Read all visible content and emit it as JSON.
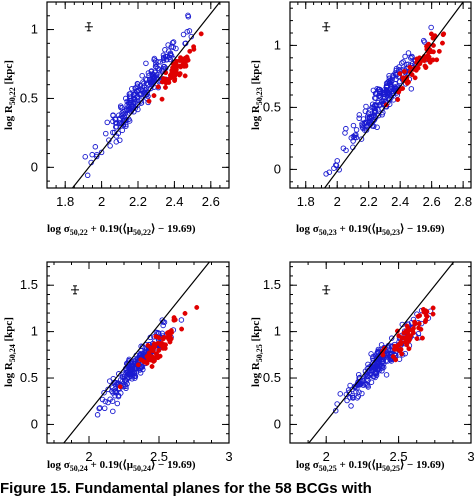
{
  "chart_data": [
    {
      "type": "scatter",
      "xlabel_parts": {
        "pre": "log σ",
        "sub1": "50,22",
        "mid": " + 0.19(⟨μ",
        "sub2": "50,22",
        "post": "⟩ − 19.69)"
      },
      "ylabel_parts": {
        "pre": "log R",
        "sub": "50,22",
        "post": " [kpc]"
      },
      "xlim": [
        1.7,
        2.7
      ],
      "ylim": [
        -0.15,
        1.2
      ],
      "xticks": [
        "1.8",
        "2",
        "2.2",
        "2.4",
        "2.6"
      ],
      "xtick_values": [
        1.8,
        2.0,
        2.2,
        2.4,
        2.6
      ],
      "yticks": [
        "0",
        "0.5",
        "1"
      ],
      "ytick_values": [
        0,
        0.5,
        1.0
      ],
      "fit_line": [
        [
          1.84,
          -0.15
        ],
        [
          2.65,
          1.2
        ]
      ],
      "error_bar": {
        "x": 1.93,
        "y": 1.02
      },
      "series": [
        {
          "color": "#1a1ad0",
          "marker": "open-circle",
          "center": [
            2.22,
            0.55
          ],
          "spread": [
            0.11,
            0.11
          ],
          "slope": 1.7,
          "count": 230,
          "seed": 11
        },
        {
          "color": "#e00000",
          "marker": "filled-circle",
          "center": [
            2.42,
            0.72
          ],
          "spread": [
            0.06,
            0.07
          ],
          "slope": 1.6,
          "count": 60,
          "seed": 12
        }
      ]
    },
    {
      "type": "scatter",
      "xlabel_parts": {
        "pre": "log σ",
        "sub1": "50,23",
        "mid": " + 0.19(⟨μ",
        "sub2": "50,23",
        "post": "⟩ − 19.69)"
      },
      "ylabel_parts": {
        "pre": "log R",
        "sub": "50,23",
        "post": " [kpc]"
      },
      "xlim": [
        1.7,
        2.85
      ],
      "ylim": [
        -0.15,
        1.35
      ],
      "xticks": [
        "1.8",
        "2",
        "2.2",
        "2.4",
        "2.6",
        "2.8"
      ],
      "xtick_values": [
        1.8,
        2.0,
        2.2,
        2.4,
        2.6,
        2.8
      ],
      "yticks": [
        "0",
        "0.5",
        "1"
      ],
      "ytick_values": [
        0,
        0.5,
        1.0
      ],
      "fit_line": [
        [
          1.92,
          -0.15
        ],
        [
          2.8,
          1.35
        ]
      ],
      "error_bar": {
        "x": 1.93,
        "y": 1.15
      },
      "series": [
        {
          "color": "#1a1ad0",
          "marker": "open-circle",
          "center": [
            2.3,
            0.58
          ],
          "spread": [
            0.12,
            0.12
          ],
          "slope": 1.6,
          "count": 230,
          "seed": 21
        },
        {
          "color": "#e00000",
          "marker": "filled-circle",
          "center": [
            2.52,
            0.85
          ],
          "spread": [
            0.07,
            0.09
          ],
          "slope": 1.5,
          "count": 60,
          "seed": 22
        }
      ]
    },
    {
      "type": "scatter",
      "xlabel_parts": {
        "pre": "log σ",
        "sub1": "50,24",
        "mid": " + 0.19(⟨μ",
        "sub2": "50,24",
        "post": "⟩ − 19.69)"
      },
      "ylabel_parts": {
        "pre": "log R",
        "sub": "50,24",
        "post": " [kpc]"
      },
      "xlim": [
        1.7,
        3.0
      ],
      "ylim": [
        -0.2,
        1.75
      ],
      "xticks": [
        "2",
        "2.5",
        "3"
      ],
      "xtick_values": [
        2.0,
        2.5,
        3.0
      ],
      "yticks": [
        "0",
        "0.5",
        "1",
        "1.5"
      ],
      "ytick_values": [
        0,
        0.5,
        1.0,
        1.5
      ],
      "fit_line": [
        [
          1.82,
          -0.2
        ],
        [
          2.86,
          1.75
        ]
      ],
      "error_bar": {
        "x": 1.9,
        "y": 1.45
      },
      "series": [
        {
          "color": "#1a1ad0",
          "marker": "open-circle",
          "center": [
            2.33,
            0.62
          ],
          "spread": [
            0.12,
            0.13
          ],
          "slope": 1.7,
          "count": 230,
          "seed": 31
        },
        {
          "color": "#e00000",
          "marker": "filled-circle",
          "center": [
            2.5,
            0.85
          ],
          "spread": [
            0.1,
            0.12
          ],
          "slope": 1.6,
          "count": 60,
          "seed": 32
        }
      ]
    },
    {
      "type": "scatter",
      "xlabel_parts": {
        "pre": "log σ",
        "sub1": "50,25",
        "mid": " + 0.19(⟨μ",
        "sub2": "50,25",
        "post": "⟩ − 19.69)"
      },
      "ylabel_parts": {
        "pre": "log R",
        "sub": "50,25",
        "post": " [kpc]"
      },
      "xlim": [
        1.75,
        3.0
      ],
      "ylim": [
        -0.2,
        1.75
      ],
      "xticks": [
        "2",
        "2.5",
        "3"
      ],
      "xtick_values": [
        2.0,
        2.5,
        3.0
      ],
      "yticks": [
        "0",
        "0.5",
        "1",
        "1.5"
      ],
      "ytick_values": [
        0,
        0.5,
        1.0,
        1.5
      ],
      "fit_line": [
        [
          1.88,
          -0.2
        ],
        [
          2.88,
          1.75
        ]
      ],
      "error_bar": {
        "x": 2.0,
        "y": 1.45
      },
      "series": [
        {
          "color": "#1a1ad0",
          "marker": "open-circle",
          "center": [
            2.38,
            0.68
          ],
          "spread": [
            0.13,
            0.13
          ],
          "slope": 1.6,
          "count": 230,
          "seed": 41
        },
        {
          "color": "#e00000",
          "marker": "filled-circle",
          "center": [
            2.55,
            0.95
          ],
          "spread": [
            0.1,
            0.13
          ],
          "slope": 1.5,
          "count": 60,
          "seed": 42
        }
      ]
    }
  ],
  "caption": "Figure 15.  Fundamental planes for the 58 BCGs with"
}
